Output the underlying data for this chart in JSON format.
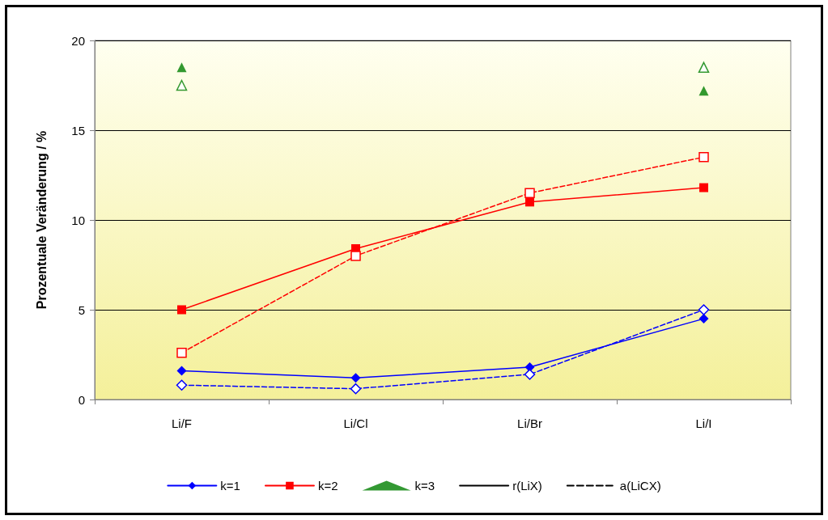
{
  "chart_data": {
    "type": "line",
    "ylabel": "Prozentuale Veränderung / %",
    "categories": [
      "Li/F",
      "Li/Cl",
      "Li/Br",
      "Li/I"
    ],
    "ylim": [
      0,
      20
    ],
    "yticks": [
      0,
      5,
      10,
      15,
      20
    ],
    "grid": "y",
    "legend": "bottom",
    "series": [
      {
        "name": "k=1",
        "color": "#0000ff",
        "marker": "diamond",
        "line_style": "solid",
        "values": [
          1.6,
          1.2,
          1.8,
          4.5
        ]
      },
      {
        "name": "k=2",
        "color": "#ff0000",
        "marker": "square",
        "line_style": "solid",
        "values": [
          5.0,
          8.4,
          11.0,
          11.8
        ]
      },
      {
        "name": "k=3",
        "type": "scatter",
        "color": "#008000",
        "marker": "triangle",
        "line_style": "solid",
        "values": [
          18.5,
          null,
          null,
          17.2
        ]
      },
      {
        "color": "#0000ff",
        "marker": "diamond",
        "line_style": "dashed",
        "values": [
          0.8,
          0.6,
          1.4,
          5.0
        ]
      },
      {
        "color": "#ff0000",
        "marker": "square",
        "line_style": "dashed",
        "values": [
          2.6,
          8.0,
          11.5,
          13.5
        ]
      },
      {
        "type": "scatter",
        "color": "#008000",
        "marker": "triangle",
        "line_style": "dashed",
        "values": [
          17.5,
          null,
          null,
          18.5
        ]
      },
      {
        "name": "r(LiX)",
        "color": "#000000",
        "marker": "none",
        "line_style": "solid",
        "values": [
          null,
          null,
          null,
          null
        ]
      },
      {
        "name": "a(LiCX)",
        "color": "#000000",
        "marker": "none",
        "line_style": "dashed",
        "values": [
          null,
          null,
          null,
          null
        ]
      }
    ]
  }
}
